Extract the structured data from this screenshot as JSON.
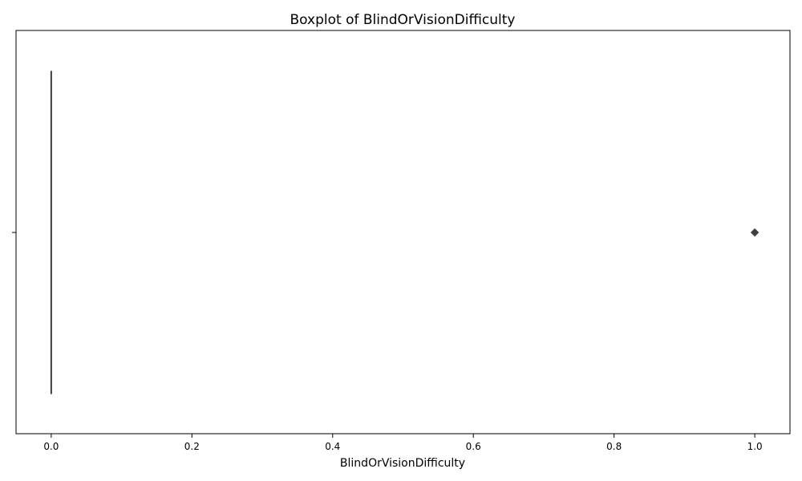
{
  "chart_data": {
    "type": "boxplot",
    "orientation": "horizontal",
    "title": "Boxplot of BlindOrVisionDifficulty",
    "xlabel": "BlindOrVisionDifficulty",
    "ylabel": "",
    "xlim": [
      -0.05,
      1.05
    ],
    "xticks": [
      0.0,
      0.2,
      0.4,
      0.6,
      0.8,
      1.0
    ],
    "xtick_labels": [
      "0.0",
      "0.2",
      "0.4",
      "0.6",
      "0.8",
      "1.0"
    ],
    "grid": false,
    "box": {
      "min": 0.0,
      "q1": 0.0,
      "median": 0.0,
      "q3": 0.0,
      "max": 0.0,
      "outliers": [
        1.0
      ]
    },
    "colors": {
      "box_line": "#3f3f3f",
      "outlier": "#3f3f3f",
      "axes": "#000000"
    }
  }
}
